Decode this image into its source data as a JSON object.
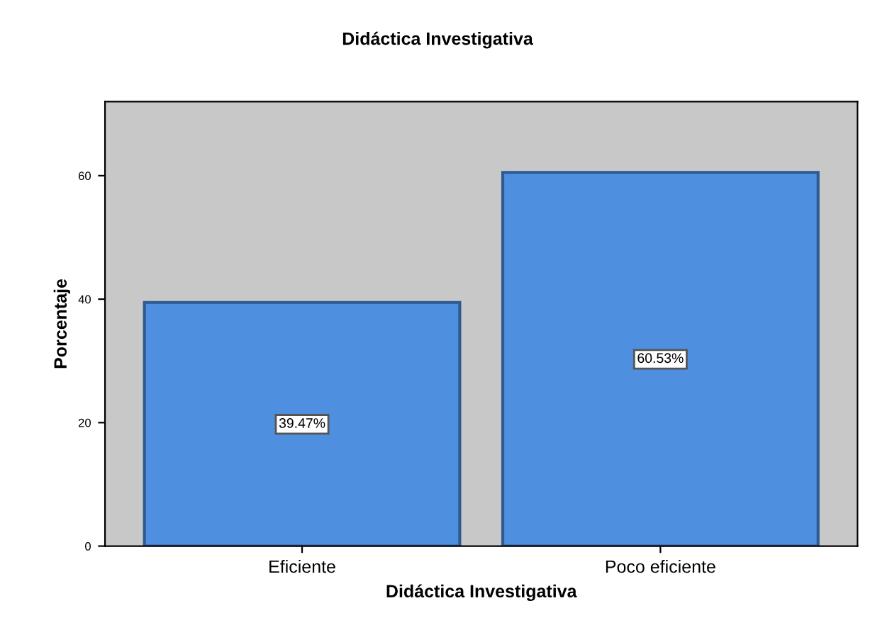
{
  "chart_data": {
    "type": "bar",
    "title": "Didáctica Investigativa",
    "xlabel": "Didáctica Investigativa",
    "ylabel": "Porcentaje",
    "categories": [
      "Eficiente",
      "Poco eficiente"
    ],
    "values": [
      39.47,
      60.53
    ],
    "value_labels": [
      "39.47%",
      "60.53%"
    ],
    "color": "#4f8fe0",
    "ylim": [
      0,
      72
    ],
    "yticks": [
      0,
      20,
      40,
      60
    ],
    "grid": false,
    "legend": false
  }
}
